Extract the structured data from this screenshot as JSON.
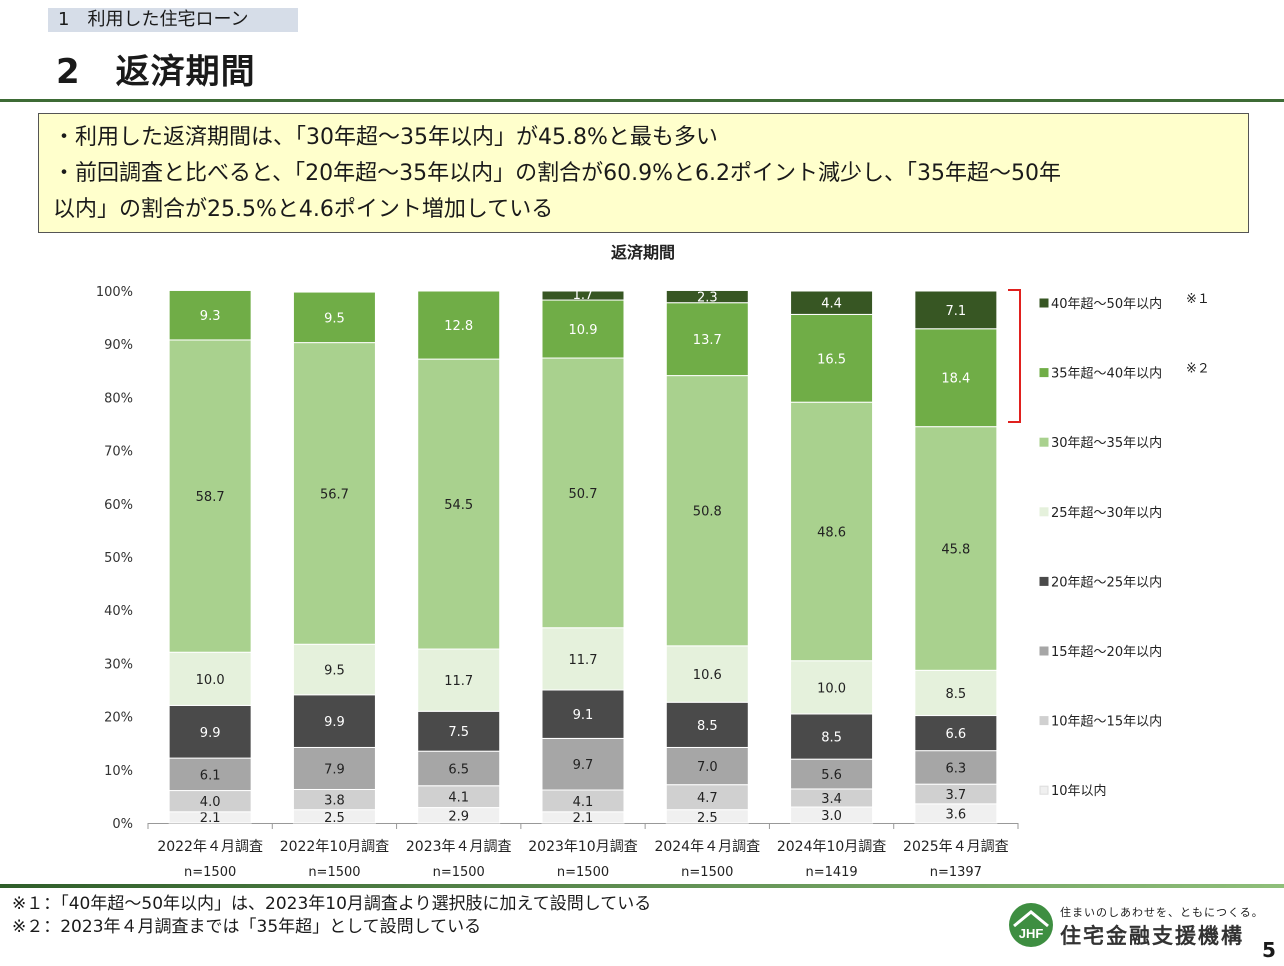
{
  "header": {
    "section_label": "1　利用した住宅ローン",
    "title": "2　返済期間"
  },
  "summary": {
    "lines": [
      "・利用した返済期間は、「30年超～35年以内」が45.8%と最も多い",
      "・前回調査と比べると、「20年超～35年以内」の割合が60.9%と6.2ポイント減少し、「35年超～50年",
      "以内」の割合が25.5%と4.6ポイント増加している"
    ]
  },
  "chart_data": {
    "type": "bar",
    "stacked": true,
    "title": "返済期間",
    "categories": [
      "2022年４月調査",
      "2022年10月調査",
      "2023年４月調査",
      "2023年10月調査",
      "2024年４月調査",
      "2024年10月調査",
      "2025年４月調査"
    ],
    "sample_sizes": [
      "n=1500",
      "n=1500",
      "n=1500",
      "n=1500",
      "n=1500",
      "n=1419",
      "n=1397"
    ],
    "ylim": [
      0,
      100
    ],
    "yticks": [
      "0%",
      "10%",
      "20%",
      "30%",
      "40%",
      "50%",
      "60%",
      "70%",
      "80%",
      "90%",
      "100%"
    ],
    "series": [
      {
        "name": "10年以内",
        "color": "#f0f0f0",
        "label_color": "#222222",
        "values": [
          2.1,
          2.5,
          2.9,
          2.1,
          2.5,
          3.0,
          3.6
        ]
      },
      {
        "name": "10年超～15年以内",
        "color": "#d0d0d0",
        "label_color": "#222222",
        "values": [
          4.0,
          3.8,
          4.1,
          4.1,
          4.7,
          3.4,
          3.7
        ]
      },
      {
        "name": "15年超～20年以内",
        "color": "#a6a6a6",
        "label_color": "#222222",
        "values": [
          6.1,
          7.9,
          6.5,
          9.7,
          7.0,
          5.6,
          6.3
        ]
      },
      {
        "name": "20年超～25年以内",
        "color": "#4a4a4a",
        "label_color": "#ffffff",
        "values": [
          9.9,
          9.9,
          7.5,
          9.1,
          8.5,
          8.5,
          6.6
        ]
      },
      {
        "name": "25年超～30年以内",
        "color": "#e5f1dc",
        "label_color": "#222222",
        "values": [
          10.0,
          9.5,
          11.7,
          11.7,
          10.6,
          10.0,
          8.5
        ]
      },
      {
        "name": "30年超～35年以内",
        "color": "#a9d18e",
        "label_color": "#222222",
        "values": [
          58.7,
          56.7,
          54.5,
          50.7,
          50.8,
          48.6,
          45.8
        ]
      },
      {
        "name": "35年超～40年以内",
        "note": "※２",
        "color": "#70ad47",
        "label_color": "#ffffff",
        "values": [
          9.3,
          9.5,
          12.8,
          10.9,
          13.7,
          16.5,
          18.4
        ]
      },
      {
        "name": "40年超～50年以内",
        "note": "※１",
        "color": "#375623",
        "label_color": "#ffffff",
        "values": [
          null,
          null,
          null,
          1.7,
          2.3,
          4.4,
          7.1
        ]
      }
    ],
    "legend_position": "right",
    "annotation": "bracket spanning 35年超～40年以内 and 40年超～50年以内"
  },
  "footnotes": [
    "※１：「40年超～50年以内」は、2023年10月調査より選択肢に加えて設問している",
    "※２：2023年４月調査までは「35年超」として設問している"
  ],
  "logo": {
    "mark": "JHF",
    "tagline": "住まいのしあわせを、ともにつくる。",
    "name": "住宅金融支援機構"
  },
  "page_number": "5"
}
